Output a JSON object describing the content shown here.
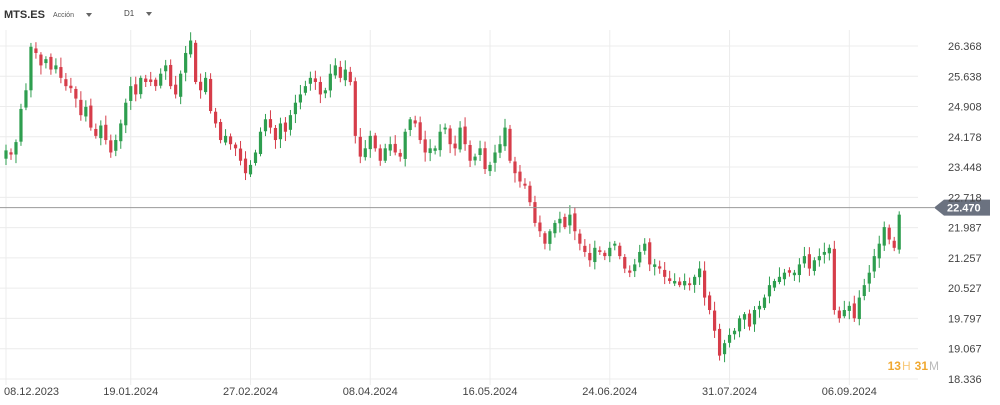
{
  "toolbar": {
    "symbol": "MTS.ES",
    "symbol_sub": "Acción",
    "timeframe": "D1"
  },
  "countdown": {
    "hours": "13",
    "hours_unit": "H",
    "minutes": "31",
    "minutes_unit": "M"
  },
  "colors": {
    "up": "#2e9e4f",
    "down": "#d63d4a",
    "grid": "#ececec",
    "price_line": "#9a9a9a",
    "price_tag": "#6b7280"
  },
  "chart_data": {
    "type": "candlestick",
    "title": "",
    "xlabel": "",
    "ylabel": "",
    "ylim": [
      18.2,
      26.8
    ],
    "yticks": [
      "26.368",
      "25.638",
      "24.908",
      "24.178",
      "23.448",
      "22.718",
      "21.987",
      "21.257",
      "20.527",
      "19.797",
      "19.067",
      "18.336"
    ],
    "xticks": [
      {
        "label": "08.12.2023",
        "index": 0
      },
      {
        "label": "19.01.2024",
        "index": 25
      },
      {
        "label": "27.02.2024",
        "index": 49
      },
      {
        "label": "08.04.2024",
        "index": 73
      },
      {
        "label": "16.05.2024",
        "index": 97
      },
      {
        "label": "24.06.2024",
        "index": 121
      },
      {
        "label": "31.07.2024",
        "index": 145
      },
      {
        "label": "06.09.2024",
        "index": 169
      }
    ],
    "current_price": "22.470",
    "grid": true,
    "closes": [
      23.85,
      23.75,
      24.05,
      24.85,
      25.3,
      26.35,
      26.2,
      25.9,
      26.05,
      25.8,
      25.9,
      25.6,
      25.4,
      25.35,
      25.1,
      24.7,
      24.9,
      24.4,
      24.2,
      24.45,
      24.1,
      23.8,
      24.1,
      24.5,
      25.0,
      25.4,
      25.2,
      25.6,
      25.5,
      25.5,
      25.4,
      25.7,
      25.9,
      25.4,
      25.2,
      25.7,
      26.2,
      26.5,
      25.5,
      25.3,
      25.6,
      24.8,
      24.5,
      24.1,
      24.2,
      24.0,
      23.9,
      23.6,
      23.3,
      23.5,
      23.8,
      24.3,
      24.6,
      24.4,
      24.1,
      24.5,
      24.3,
      24.7,
      25.0,
      25.2,
      25.4,
      25.6,
      25.5,
      25.2,
      25.3,
      25.7,
      25.9,
      25.6,
      25.8,
      25.5,
      24.2,
      23.7,
      23.9,
      24.2,
      23.9,
      23.6,
      23.9,
      24.0,
      23.8,
      23.7,
      24.3,
      24.6,
      24.5,
      24.1,
      23.8,
      23.9,
      23.9,
      24.3,
      24.4,
      24.0,
      23.9,
      24.4,
      24.0,
      23.6,
      23.7,
      23.9,
      23.4,
      23.5,
      23.8,
      24.0,
      24.4,
      23.6,
      23.3,
      23.1,
      23.0,
      22.6,
      22.1,
      21.9,
      21.6,
      21.9,
      22.1,
      22.2,
      22.0,
      22.3,
      21.9,
      21.6,
      21.4,
      21.2,
      21.5,
      21.4,
      21.3,
      21.5,
      21.6,
      21.3,
      21.0,
      20.9,
      21.1,
      21.4,
      21.6,
      21.1,
      21.1,
      21.0,
      20.8,
      20.7,
      20.7,
      20.6,
      20.7,
      20.6,
      20.8,
      21.0,
      20.3,
      20.0,
      19.5,
      18.9,
      19.2,
      19.4,
      19.5,
      19.8,
      19.9,
      19.6,
      20.0,
      20.1,
      20.3,
      20.6,
      20.7,
      20.8,
      20.9,
      20.9,
      20.9,
      21.1,
      21.3,
      21.0,
      21.2,
      21.3,
      21.4,
      21.5,
      20.0,
      19.8,
      20.0,
      20.1,
      19.8,
      20.3,
      20.6,
      20.9,
      21.3,
      21.6,
      22.0,
      21.7,
      21.5,
      22.3
    ]
  }
}
